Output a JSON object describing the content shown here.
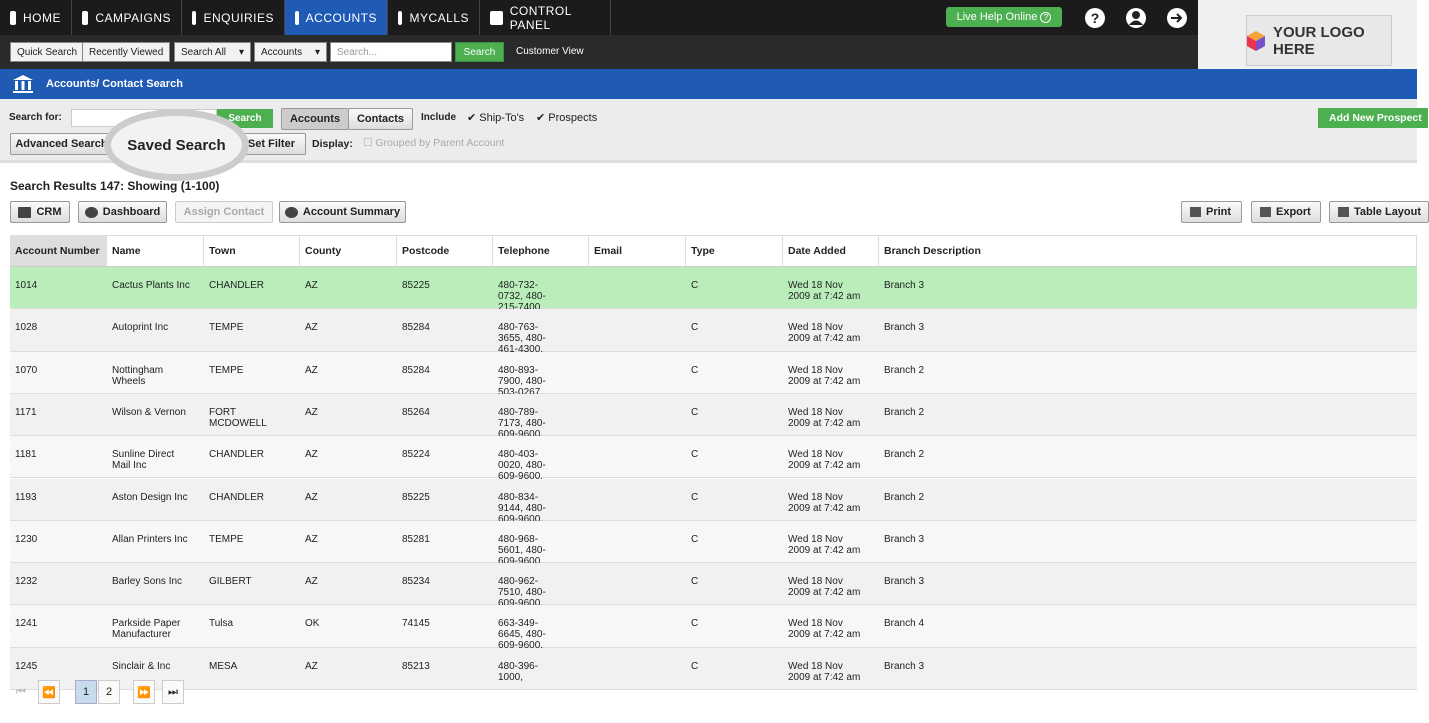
{
  "nav": {
    "items": [
      "HOME",
      "CAMPAIGNS",
      "ENQUIRIES",
      "ACCOUNTS",
      "MYCALLS",
      "CONTROL PANEL"
    ],
    "live_help": "Live Help Online",
    "logo": "YOUR LOGO HERE"
  },
  "toolbar": {
    "buttons": [
      "Quick Search",
      "Recently Viewed"
    ],
    "selects": [
      "Search All",
      "Accounts"
    ],
    "placeholder": "Search...",
    "search": "Search",
    "customer_view": "Customer View"
  },
  "page_title": "Accounts/ Contact Search",
  "search_panel": {
    "label": "Search for:",
    "search": "Search",
    "tabs": [
      "Accounts",
      "Contacts"
    ],
    "include": "Include",
    "checks": [
      "Ship-To's",
      "Prospects"
    ],
    "add_new": "Add New Prospect",
    "advanced": "Advanced Search",
    "saved": "Saved Search",
    "filter": "Set Filter",
    "display": "Display:",
    "grouped": "Grouped by Parent Account"
  },
  "results": {
    "title": "Search Results 147: Showing (1-100)",
    "actions": [
      "CRM",
      "Dashboard",
      "Assign Contact",
      "Account Summary"
    ],
    "right_actions": [
      "Print",
      "Export",
      "Table Layout"
    ]
  },
  "table": {
    "columns": [
      "Account Number",
      "Name",
      "Town",
      "County",
      "Postcode",
      "Telephone",
      "Email",
      "Type",
      "Date Added",
      "Branch Description"
    ],
    "rows": [
      {
        "account": "1014",
        "name": "Cactus Plants Inc",
        "town": "CHANDLER",
        "county": "AZ",
        "postcode": "85225",
        "telephone": "480-732-0732, 480-215-7400,",
        "type": "C",
        "date": "Wed 18 Nov 2009 at 7:42 am",
        "branch": "Branch 3"
      },
      {
        "account": "1028",
        "name": "Autoprint Inc",
        "town": "TEMPE",
        "county": "AZ",
        "postcode": "85284",
        "telephone": "480-763-3655, 480-461-4300,",
        "type": "C",
        "date": "Wed 18 Nov 2009 at 7:42 am",
        "branch": "Branch 3"
      },
      {
        "account": "1070",
        "name": "Nottingham Wheels",
        "town": "TEMPE",
        "county": "AZ",
        "postcode": "85284",
        "telephone": "480-893-7900, 480-503-0267,",
        "type": "C",
        "date": "Wed 18 Nov 2009 at 7:42 am",
        "branch": "Branch 2"
      },
      {
        "account": "1171",
        "name": "Wilson & Vernon",
        "town": "FORT MCDOWELL",
        "county": "AZ",
        "postcode": "85264",
        "telephone": "480-789-7173, 480-609-9600,",
        "type": "C",
        "date": "Wed 18 Nov 2009 at 7:42 am",
        "branch": "Branch 2"
      },
      {
        "account": "1181",
        "name": "Sunline Direct Mail Inc",
        "town": "CHANDLER",
        "county": "AZ",
        "postcode": "85224",
        "telephone": "480-403-0020, 480-609-9600,",
        "type": "C",
        "date": "Wed 18 Nov 2009 at 7:42 am",
        "branch": "Branch 2"
      },
      {
        "account": "1193",
        "name": "Aston Design Inc",
        "town": "CHANDLER",
        "county": "AZ",
        "postcode": "85225",
        "telephone": "480-834-9144, 480-609-9600,",
        "type": "C",
        "date": "Wed 18 Nov 2009 at 7:42 am",
        "branch": "Branch 2"
      },
      {
        "account": "1230",
        "name": "Allan Printers Inc",
        "town": "TEMPE",
        "county": "AZ",
        "postcode": "85281",
        "telephone": "480-968-5601, 480-609-9600,",
        "type": "C",
        "date": "Wed 18 Nov 2009 at 7:42 am",
        "branch": "Branch 3"
      },
      {
        "account": "1232",
        "name": "Barley Sons Inc",
        "town": "GILBERT",
        "county": "AZ",
        "postcode": "85234",
        "telephone": "480-962-7510, 480-609-9600,",
        "type": "C",
        "date": "Wed 18 Nov 2009 at 7:42 am",
        "branch": "Branch 3"
      },
      {
        "account": "1241",
        "name": "Parkside Paper Manufacturer",
        "town": "Tulsa",
        "county": "OK",
        "postcode": "74145",
        "telephone": "663-349-6645, 480-609-9600,",
        "type": "C",
        "date": "Wed 18 Nov 2009 at 7:42 am",
        "branch": "Branch 4"
      },
      {
        "account": "1245",
        "name": "Sinclair & Inc",
        "town": "MESA",
        "county": "AZ",
        "postcode": "85213",
        "telephone": "480-396-1000,",
        "type": "C",
        "date": "Wed 18 Nov 2009 at 7:42 am",
        "branch": "Branch 3"
      }
    ]
  },
  "pagination": {
    "pages": [
      "1",
      "2"
    ]
  }
}
